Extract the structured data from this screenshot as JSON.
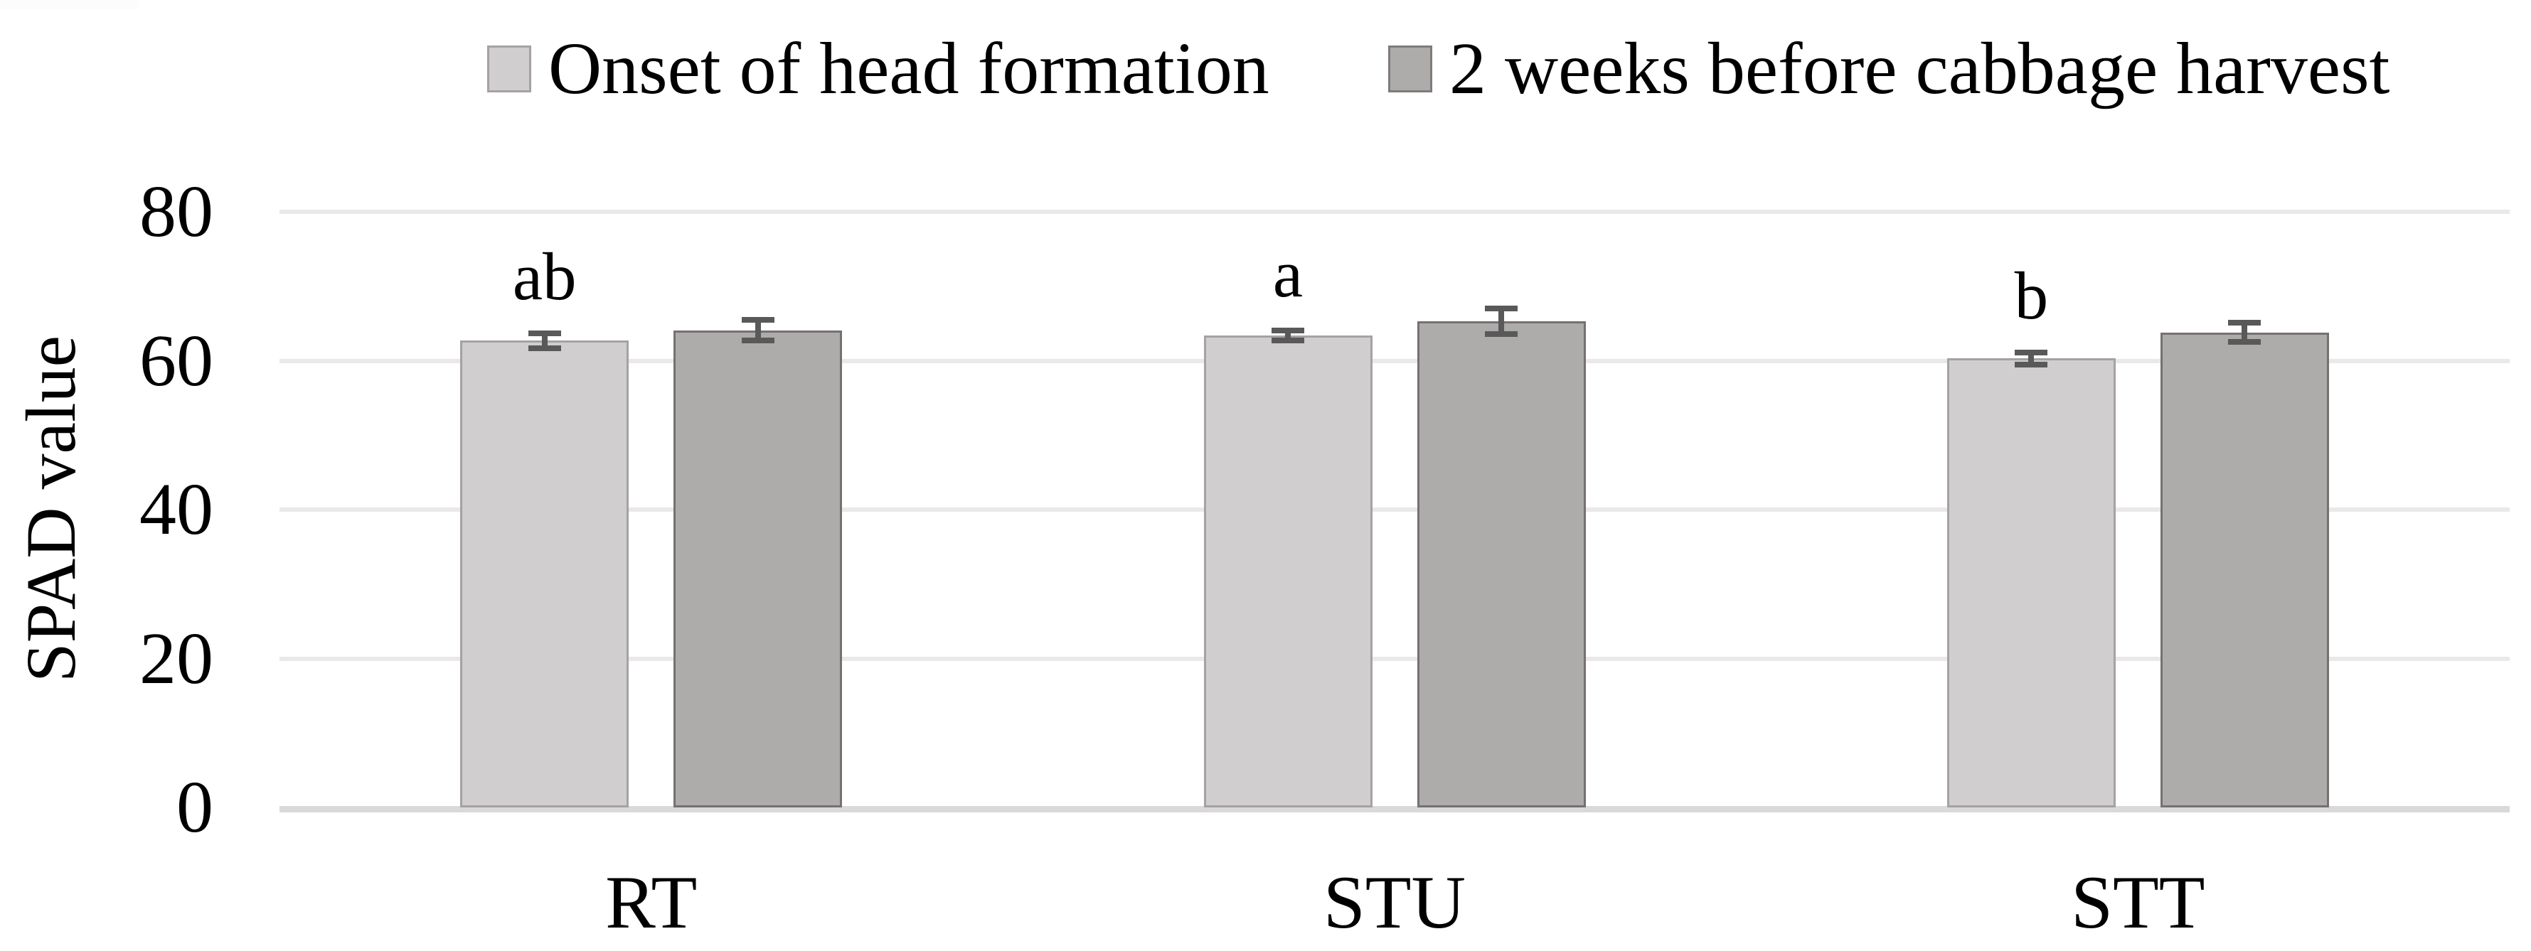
{
  "figure": {
    "background_color": "#ffffff",
    "text_color": "#000000",
    "ylabel": "SPAD value",
    "legend": [
      {
        "label": "Onset of head formation"
      },
      {
        "label": "2 weeks before cabbage harvest"
      }
    ]
  },
  "chart_data": {
    "type": "bar",
    "title": "",
    "xlabel": "",
    "ylabel": "SPAD value",
    "categories": [
      "RT",
      "STU",
      "STT"
    ],
    "series": [
      {
        "name": "Onset of head formation",
        "values": [
          62.7,
          63.4,
          60.3
        ],
        "errors": [
          1.0,
          0.7,
          0.8
        ],
        "fill_color": "#d0cece",
        "border_color": "#a6a2a2"
      },
      {
        "name": "2 weeks before cabbage harvest",
        "values": [
          64.1,
          65.3,
          63.8
        ],
        "errors": [
          1.4,
          1.7,
          1.3
        ],
        "fill_color": "#aeabab",
        "border_color": "#767070"
      }
    ],
    "sig_letters": [
      "ab",
      "a",
      "b"
    ],
    "sig_letters_over_series": "Onset of head formation",
    "yticks": [
      0,
      20,
      40,
      60,
      80
    ],
    "ytick_labels": [
      "0",
      "20",
      "40",
      "60",
      "80"
    ],
    "ylim": [
      0,
      80
    ],
    "grid": true,
    "legend_position": "top",
    "gridline_color": "#eae8e8",
    "axisline_color": "#d9d9d9",
    "error_bar_color": "#595959"
  }
}
